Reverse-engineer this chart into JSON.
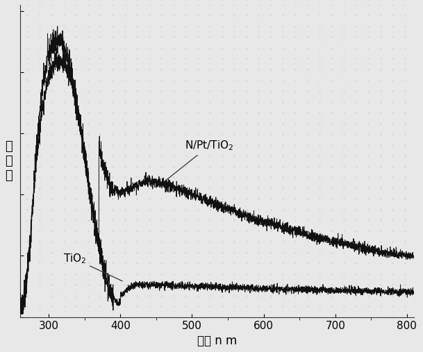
{
  "xlabel": "波长 n m",
  "ylabel": "吸\n光\n度",
  "xlim": [
    260,
    810
  ],
  "x_ticks": [
    300,
    400,
    500,
    600,
    700,
    800
  ],
  "line_color": "#111111",
  "bg_color": "#f0f0f0",
  "label_tio2": "TiO$_2$",
  "label_npt": "N/Pt/TiO$_2$",
  "noise_seed_tio2": 42,
  "noise_seed_npt": 99,
  "fontsize_tick": 11,
  "fontsize_label": 12,
  "fontsize_annotation": 11
}
